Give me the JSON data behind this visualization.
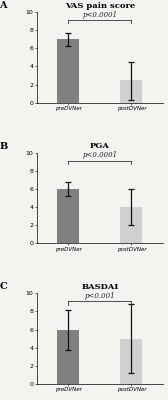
{
  "panels": [
    {
      "label": "A",
      "title": "VAS pain score",
      "bars": [
        {
          "x": 0,
          "height": 7.0,
          "yerr_low": 0.7,
          "yerr_high": 0.7,
          "color": "#808080",
          "tick": "preDVNer"
        },
        {
          "x": 1,
          "height": 2.5,
          "yerr_low": 2.2,
          "yerr_high": 2.0,
          "color": "#d0d0d0",
          "tick": "postDVNer"
        }
      ],
      "ylim": [
        0,
        10
      ],
      "yticks": [
        0,
        2,
        4,
        6,
        8,
        10
      ],
      "pvalue": "p<0.0001"
    },
    {
      "label": "B",
      "title": "PGA",
      "bars": [
        {
          "x": 0,
          "height": 6.0,
          "yerr_low": 0.8,
          "yerr_high": 0.8,
          "color": "#808080",
          "tick": "preDVNer"
        },
        {
          "x": 1,
          "height": 4.0,
          "yerr_low": 2.0,
          "yerr_high": 2.0,
          "color": "#d0d0d0",
          "tick": "postDVNer"
        }
      ],
      "ylim": [
        0,
        10
      ],
      "yticks": [
        0,
        2,
        4,
        6,
        8,
        10
      ],
      "pvalue": "p<0.0001"
    },
    {
      "label": "C",
      "title": "BASDAI",
      "bars": [
        {
          "x": 0,
          "height": 6.0,
          "yerr_low": 2.2,
          "yerr_high": 2.2,
          "color": "#808080",
          "tick": "preDVNer"
        },
        {
          "x": 1,
          "height": 5.0,
          "yerr_low": 3.8,
          "yerr_high": 3.8,
          "color": "#d0d0d0",
          "tick": "postDVNer"
        }
      ],
      "ylim": [
        0,
        10
      ],
      "yticks": [
        0,
        2,
        4,
        6,
        8,
        10
      ],
      "pvalue": "p<0.001"
    }
  ],
  "background_color": "#f5f3ef",
  "bar_width": 0.35,
  "errorbar_color": "#111111",
  "errorbar_linewidth": 0.9,
  "errorbar_capsize": 2.5,
  "ytick_fontsize": 4.5,
  "xtick_fontsize": 4.0,
  "title_fontsize": 6.0,
  "label_fontsize": 7.0,
  "pvalue_fontsize": 5.0,
  "xlim": [
    -0.5,
    1.5
  ]
}
